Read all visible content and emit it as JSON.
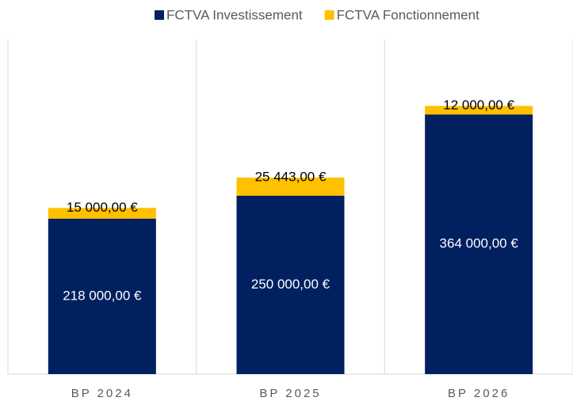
{
  "chart_data": {
    "type": "stacked_bar",
    "categories": [
      "BP 2024",
      "BP 2025",
      "BP 2026"
    ],
    "series": [
      {
        "name": "FCTVA Investissement",
        "color": "#002060",
        "values": [
          218000,
          250000,
          364000
        ],
        "value_labels": [
          "218 000,00 €",
          "250 000,00 €",
          "364 000,00 €"
        ]
      },
      {
        "name": "FCTVA Fonctionnement",
        "color": "#FFC000",
        "values": [
          15000,
          25443,
          12000
        ],
        "value_labels": [
          "15 000,00 €",
          "25 443,00 €",
          "12 000,00 €"
        ]
      }
    ],
    "ylim": [
      0,
      400000
    ],
    "legend": "top"
  }
}
